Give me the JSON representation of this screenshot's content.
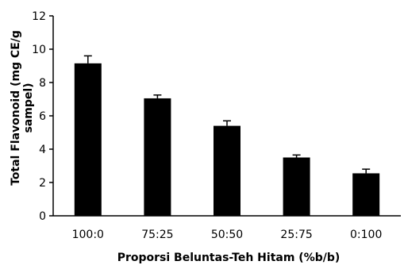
{
  "chart_data": {
    "type": "bar",
    "categories": [
      "100:0",
      "75:25",
      "50:50",
      "25:75",
      "0:100"
    ],
    "values": [
      9.15,
      7.05,
      5.4,
      3.5,
      2.55
    ],
    "error": [
      0.45,
      0.2,
      0.3,
      0.15,
      0.25
    ],
    "xlabel": "Proporsi  Beluntas-Teh Hitam (%b/b)",
    "ylabel_line1": "Total Flavonoid  (mg CE/g",
    "ylabel_line2": "sampel)",
    "ylim": [
      0,
      12
    ],
    "yticks": [
      0,
      2,
      4,
      6,
      8,
      10,
      12
    ],
    "bar_color": "#000000",
    "grid": false,
    "legend": "none"
  }
}
